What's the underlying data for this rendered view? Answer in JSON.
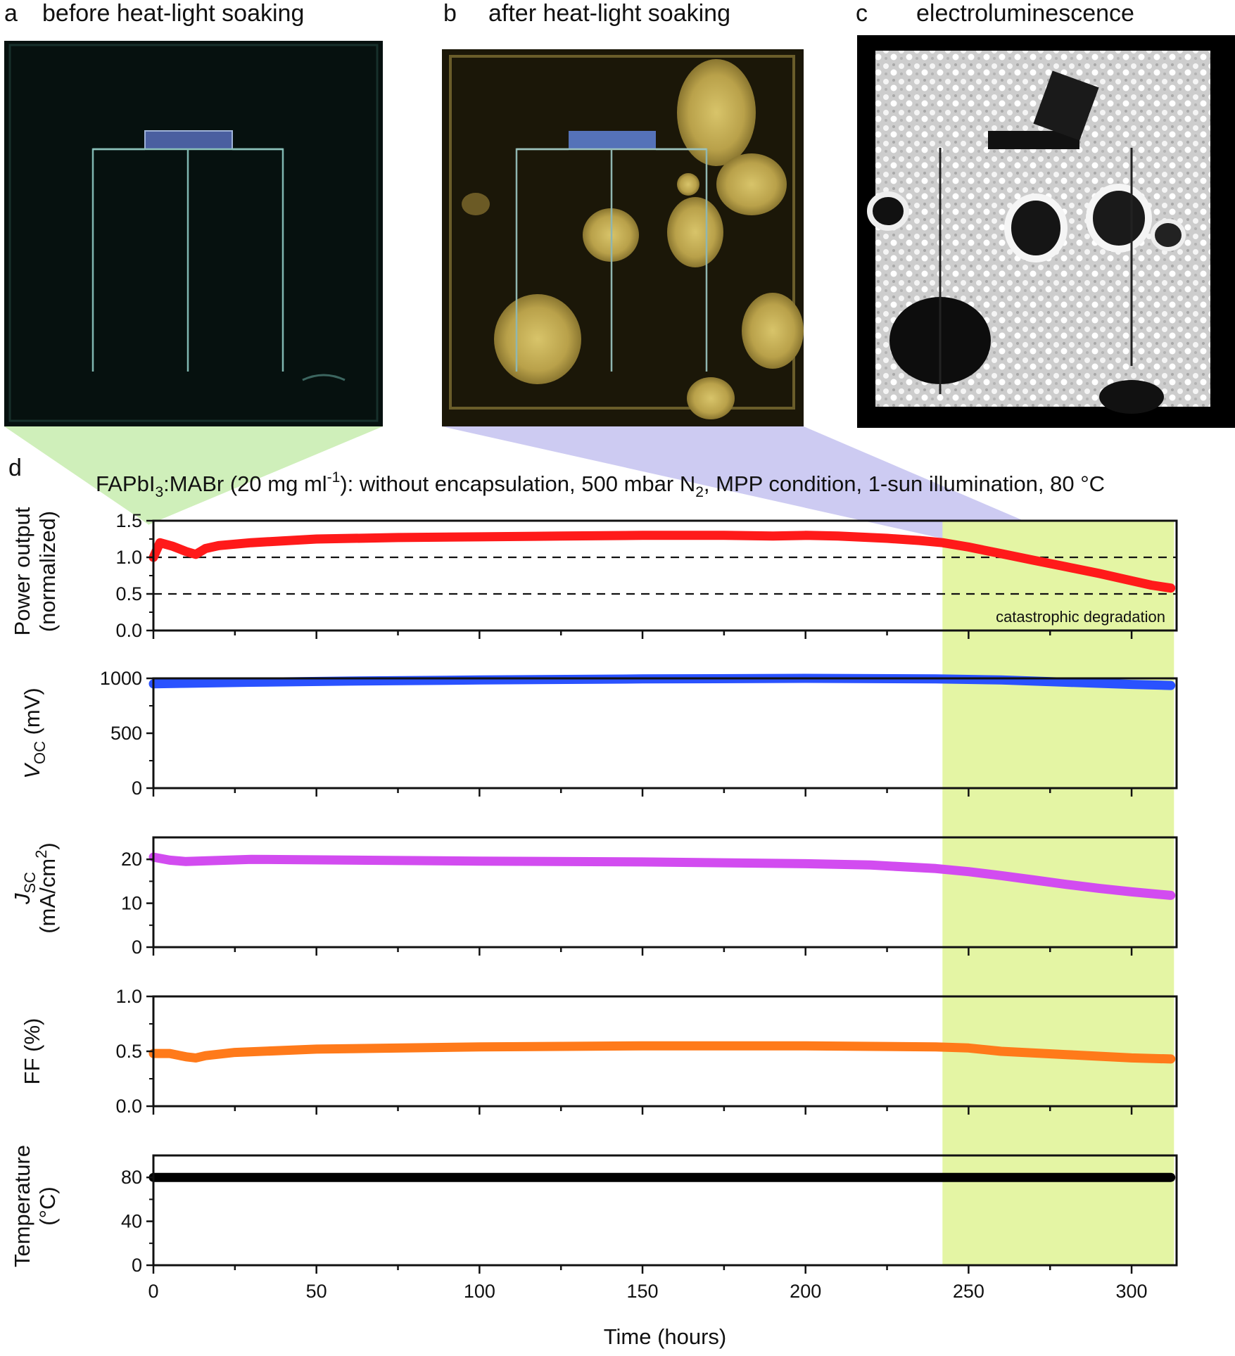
{
  "panels": {
    "a": {
      "letter": "a",
      "title": "before heat-light soaking"
    },
    "b": {
      "letter": "b",
      "title": "after heat-light soaking"
    },
    "c": {
      "letter": "c",
      "title": "electroluminescence"
    },
    "d": {
      "letter": "d"
    }
  },
  "caption": {
    "part1": "FAPbI",
    "sub1": "3",
    "part2": ":MABr (20 mg ml",
    "sup1": "-1",
    "part3": "): without encapsulation, 500 mbar N",
    "sub2": "2",
    "part4": ", MPP condition, 1-sun illumination, 80 °C"
  },
  "colors": {
    "highlight": "#e4f5a4",
    "wedge_a": "#c7ecae",
    "wedge_b": "#b8b5ec",
    "pce": "#ff1a1a",
    "voc": "#2a52ff",
    "jsc": "#d24cf0",
    "ff": "#ff7a1a",
    "temp": "#000000"
  },
  "chart_data": {
    "type": "line",
    "x_label": "Time (hours)",
    "x_range": [
      0,
      312
    ],
    "x_ticks": [
      0,
      50,
      100,
      150,
      200,
      250,
      300
    ],
    "highlight_region": [
      242,
      313
    ],
    "annotation": "catastrophic degradation",
    "subplots": [
      {
        "key": "pce",
        "ylabel_lines": [
          "Power output",
          "(normalized)"
        ],
        "ylim": [
          0,
          1.5
        ],
        "yticks": [
          0.0,
          0.5,
          1.0,
          1.5
        ],
        "ytick_labels": [
          "0.0",
          "0.5",
          "1.0",
          "1.5"
        ],
        "reference_lines": [
          1.0,
          0.5
        ],
        "series": [
          {
            "x": [
              0,
              2,
              6,
              10,
              13,
              16,
              20,
              30,
              50,
              75,
              100,
              125,
              150,
              175,
              190,
              200,
              210,
              225,
              235,
              242,
              250,
              260,
              270,
              280,
              290,
              300,
              306,
              312
            ],
            "y": [
              1.0,
              1.2,
              1.15,
              1.08,
              1.04,
              1.12,
              1.16,
              1.2,
              1.25,
              1.27,
              1.28,
              1.29,
              1.3,
              1.3,
              1.29,
              1.3,
              1.29,
              1.26,
              1.23,
              1.2,
              1.14,
              1.05,
              0.96,
              0.87,
              0.78,
              0.68,
              0.62,
              0.58
            ]
          }
        ]
      },
      {
        "key": "voc",
        "ylabel_main": "V",
        "ylabel_sub": "OC",
        "ylabel_rest": " (mV)",
        "ylim": [
          0,
          1000
        ],
        "yticks": [
          0,
          500,
          1000
        ],
        "ytick_labels": [
          "0",
          "500",
          "1000"
        ],
        "series": [
          {
            "x": [
              0,
              10,
              30,
              60,
              100,
              150,
              200,
              240,
              260,
              280,
              300,
              312
            ],
            "y": [
              950,
              955,
              965,
              975,
              985,
              995,
              1000,
              995,
              985,
              965,
              945,
              935
            ]
          }
        ]
      },
      {
        "key": "jsc",
        "ylabel_main": "J",
        "ylabel_sub": "SC",
        "ylabel_line2": "(mA/cm",
        "ylabel_sup": "2",
        "ylabel_line2_end": ")",
        "ylim": [
          0,
          25
        ],
        "yticks": [
          0,
          10,
          20
        ],
        "ytick_labels": [
          "0",
          "10",
          "20"
        ],
        "series": [
          {
            "x": [
              0,
              5,
              10,
              30,
              100,
              150,
              200,
              220,
              240,
              250,
              260,
              270,
              280,
              290,
              300,
              312
            ],
            "y": [
              20.5,
              19.8,
              19.5,
              20.0,
              19.6,
              19.4,
              19.0,
              18.7,
              17.9,
              17.2,
              16.3,
              15.3,
              14.3,
              13.4,
              12.6,
              11.8
            ]
          }
        ]
      },
      {
        "key": "ff",
        "ylabel_lines": [
          "FF (%)"
        ],
        "ylim": [
          0,
          1.0
        ],
        "yticks": [
          0.0,
          0.5,
          1.0
        ],
        "ytick_labels": [
          "0.0",
          "0.5",
          "1.0"
        ],
        "series": [
          {
            "x": [
              0,
              5,
              10,
              13,
              16,
              25,
              50,
              100,
              150,
              200,
              240,
              250,
              260,
              280,
              300,
              312
            ],
            "y": [
              0.48,
              0.48,
              0.45,
              0.44,
              0.46,
              0.49,
              0.52,
              0.54,
              0.55,
              0.55,
              0.54,
              0.53,
              0.5,
              0.47,
              0.44,
              0.43
            ]
          }
        ]
      },
      {
        "key": "temp",
        "ylabel_lines": [
          "Temperature",
          "(°C)"
        ],
        "ylim": [
          0,
          100
        ],
        "yticks": [
          0,
          40,
          80
        ],
        "ytick_labels": [
          "0",
          "40",
          "80"
        ],
        "series": [
          {
            "x": [
              0,
              312
            ],
            "y": [
              80,
              80
            ]
          }
        ]
      }
    ]
  }
}
